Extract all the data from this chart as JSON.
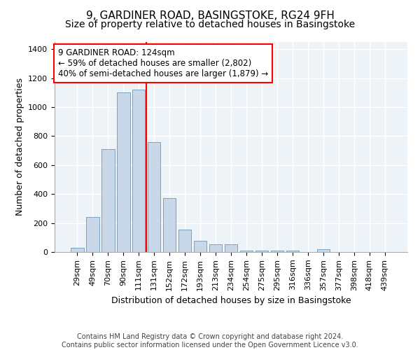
{
  "title1": "9, GARDINER ROAD, BASINGSTOKE, RG24 9FH",
  "title2": "Size of property relative to detached houses in Basingstoke",
  "xlabel": "Distribution of detached houses by size in Basingstoke",
  "ylabel": "Number of detached properties",
  "categories": [
    "29sqm",
    "49sqm",
    "70sqm",
    "90sqm",
    "111sqm",
    "131sqm",
    "152sqm",
    "172sqm",
    "193sqm",
    "213sqm",
    "234sqm",
    "254sqm",
    "275sqm",
    "295sqm",
    "316sqm",
    "336sqm",
    "357sqm",
    "377sqm",
    "398sqm",
    "418sqm",
    "439sqm"
  ],
  "values": [
    30,
    240,
    710,
    1100,
    1120,
    760,
    370,
    155,
    75,
    55,
    55,
    10,
    10,
    10,
    10,
    0,
    20,
    0,
    0,
    0,
    0
  ],
  "bar_color": "#c8d8e8",
  "bar_edge_color": "#5588aa",
  "vline_x": 4.5,
  "vline_color": "red",
  "annotation_text": "9 GARDINER ROAD: 124sqm\n← 59% of detached houses are smaller (2,802)\n40% of semi-detached houses are larger (1,879) →",
  "annotation_box_color": "white",
  "annotation_box_edge_color": "red",
  "ylim": [
    0,
    1450
  ],
  "yticks": [
    0,
    200,
    400,
    600,
    800,
    1000,
    1200,
    1400
  ],
  "background_color": "#eef3f8",
  "grid_color": "#ffffff",
  "footnote": "Contains HM Land Registry data © Crown copyright and database right 2024.\nContains public sector information licensed under the Open Government Licence v3.0.",
  "title1_fontsize": 11,
  "title2_fontsize": 10,
  "xlabel_fontsize": 9,
  "ylabel_fontsize": 9,
  "tick_fontsize": 8,
  "annot_fontsize": 8.5,
  "footnote_fontsize": 7
}
